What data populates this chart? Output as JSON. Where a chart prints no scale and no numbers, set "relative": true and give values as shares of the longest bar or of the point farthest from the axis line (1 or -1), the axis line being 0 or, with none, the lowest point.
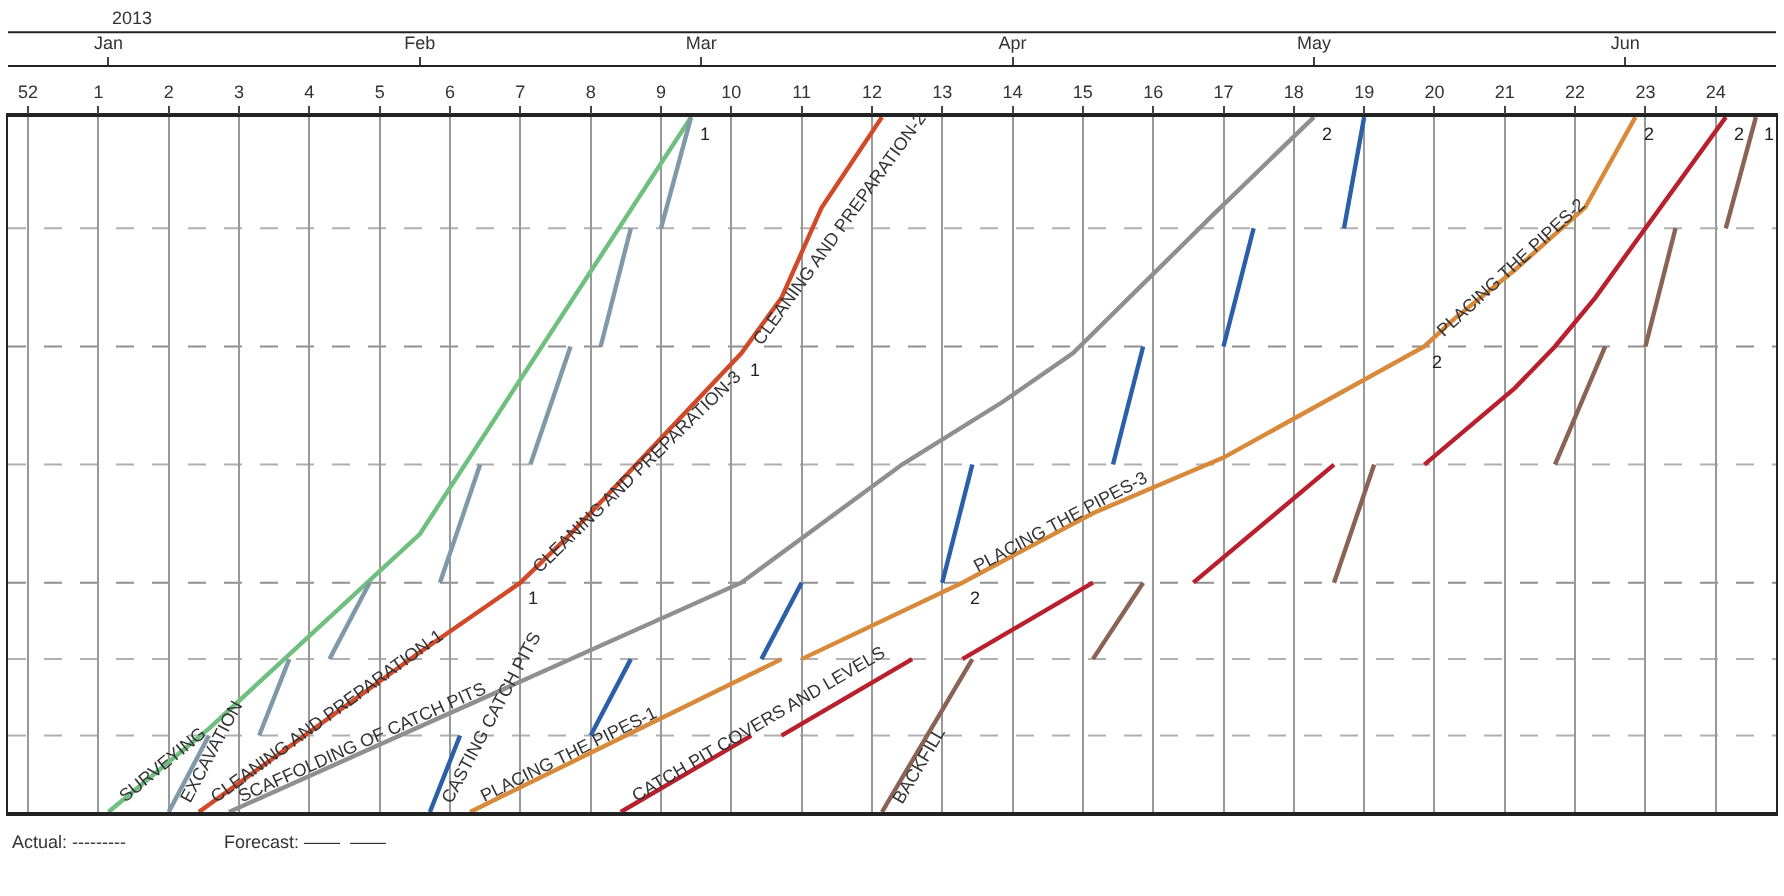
{
  "chart_data": {
    "type": "line",
    "relative": true,
    "legend": false,
    "grid": "x",
    "marker": "none",
    "line_style": "solid",
    "xlim": [
      "2012-12-22",
      "2013-06-16"
    ],
    "xticks": [
      {
        "value": "2012-12-24",
        "label": "52"
      },
      {
        "value": "2012-12-31",
        "label": "1"
      },
      {
        "value": "2013-01-07",
        "label": "2"
      },
      {
        "value": "2013-01-14",
        "label": "3"
      },
      {
        "value": "2013-01-21",
        "label": "4"
      },
      {
        "value": "2013-01-28",
        "label": "5"
      },
      {
        "value": "2013-02-04",
        "label": "6"
      },
      {
        "value": "2013-02-11",
        "label": "7"
      },
      {
        "value": "2013-02-18",
        "label": "8"
      },
      {
        "value": "2013-02-25",
        "label": "9"
      },
      {
        "value": "2013-03-04",
        "label": "10"
      },
      {
        "value": "2013-03-11",
        "label": "11"
      },
      {
        "value": "2013-03-18",
        "label": "12"
      },
      {
        "value": "2013-03-25",
        "label": "13"
      },
      {
        "value": "2013-04-01",
        "label": "14"
      },
      {
        "value": "2013-04-08",
        "label": "15"
      },
      {
        "value": "2013-04-15",
        "label": "16"
      },
      {
        "value": "2013-04-22",
        "label": "17"
      },
      {
        "value": "2013-04-29",
        "label": "18"
      },
      {
        "value": "2013-05-06",
        "label": "19"
      },
      {
        "value": "2013-05-13",
        "label": "20"
      },
      {
        "value": "2013-05-20",
        "label": "21"
      },
      {
        "value": "2013-05-27",
        "label": "22"
      },
      {
        "value": "2013-06-03",
        "label": "23"
      },
      {
        "value": "2013-06-10",
        "label": "24"
      }
    ],
    "x2lim": [
      "2012-12-22",
      "2013-06-16"
    ],
    "x2ticks": [
      {
        "value": "2013-01-01",
        "label": "Jan"
      },
      {
        "value": "2013-02-01",
        "label": "Feb"
      },
      {
        "value": "2013-03-01",
        "label": "Mar"
      },
      {
        "value": "2013-04-01",
        "label": "Apr"
      },
      {
        "value": "2013-05-01",
        "label": "May"
      },
      {
        "value": "2013-06-01",
        "label": "Jun"
      }
    ],
    "x2label": "2013",
    "ref_lines": [
      {
        "axis": "y",
        "value": 0.11,
        "color": "#b0b0b0",
        "line_style": "dashed"
      },
      {
        "axis": "y",
        "value": 0.22,
        "color": "#b0b0b0",
        "line_style": "dashed"
      },
      {
        "axis": "y",
        "value": 0.33,
        "color": "#909090",
        "line_style": "dashed"
      },
      {
        "axis": "y",
        "value": 0.5,
        "color": "#b0b0b0",
        "line_style": "dashed"
      },
      {
        "axis": "y",
        "value": 0.67,
        "color": "#909090",
        "line_style": "dashed"
      },
      {
        "axis": "y",
        "value": 0.84,
        "color": "#b0b0b0",
        "line_style": "dashed"
      }
    ],
    "series": [
      {
        "name": "SURVEYING",
        "color": "#6fbf7f",
        "x": [
          "2013-01-01",
          "2013-01-11",
          "2013-02-01",
          "2013-02-28"
        ],
        "values": [
          0.0,
          0.12,
          0.4,
          1.0
        ]
      },
      {
        "name": "EXCAVATION",
        "color": "#7f99a8",
        "x": [
          "2013-01-07",
          "2013-01-11",
          null,
          "2013-01-16",
          "2013-01-19",
          null,
          "2013-01-23",
          "2013-01-27",
          null,
          "2013-02-03",
          "2013-02-07",
          null,
          "2013-02-12",
          "2013-02-16",
          null,
          "2013-02-19",
          "2013-02-22",
          null,
          "2013-02-25",
          "2013-02-28"
        ],
        "values": [
          0.0,
          0.11,
          null,
          0.11,
          0.22,
          null,
          0.22,
          0.33,
          null,
          0.33,
          0.5,
          null,
          0.5,
          0.67,
          null,
          0.67,
          0.84,
          null,
          0.84,
          1.0
        ]
      },
      {
        "color": "#d04a2a",
        "x": [
          "2013-01-10",
          "2013-02-01",
          "2013-02-11",
          "2013-02-16",
          "2013-03-05",
          "2013-03-09",
          "2013-03-13",
          "2013-03-19"
        ],
        "values": [
          0.0,
          0.23,
          0.33,
          0.4,
          0.66,
          0.74,
          0.87,
          1.0
        ]
      },
      {
        "name": "SCAFFOLDING OF CATCH PITS",
        "color": "#8f8f8f",
        "x": [
          "2013-01-13",
          "2013-03-05",
          "2013-03-21",
          "2013-03-31",
          "2013-04-07",
          "2013-04-14",
          "2013-04-21",
          "2013-05-01"
        ],
        "values": [
          0.0,
          0.33,
          0.5,
          0.59,
          0.66,
          0.76,
          0.86,
          1.0
        ]
      },
      {
        "name": "CASTING CATCH PITS",
        "color": "#2b5fa8",
        "x": [
          "2013-02-02",
          "2013-02-05",
          null,
          "2013-02-18",
          "2013-02-22",
          null,
          "2013-03-07",
          "2013-03-11",
          null,
          "2013-03-25",
          "2013-03-28",
          null,
          "2013-04-11",
          "2013-04-14",
          null,
          "2013-04-22",
          "2013-04-25",
          null,
          "2013-05-04",
          "2013-05-06"
        ],
        "values": [
          0.0,
          0.11,
          null,
          0.11,
          0.22,
          null,
          0.22,
          0.33,
          null,
          0.33,
          0.5,
          null,
          0.5,
          0.67,
          null,
          0.67,
          0.84,
          null,
          0.84,
          1.0
        ]
      },
      {
        "color": "#d8893a",
        "x": [
          "2013-02-06",
          "2013-03-09",
          null,
          "2013-03-11",
          "2013-03-27",
          "2013-04-09",
          "2013-04-22",
          "2013-05-12",
          "2013-05-15",
          "2013-05-21",
          "2013-05-28",
          "2013-06-02"
        ],
        "values": [
          0.0,
          0.22,
          null,
          0.22,
          0.33,
          0.43,
          0.51,
          0.67,
          0.71,
          0.78,
          0.87,
          1.0
        ]
      },
      {
        "name": "CATCH PIT COVERS AND LEVELS",
        "color": "#b8202e",
        "x": [
          "2013-02-21",
          "2013-03-06",
          null,
          "2013-03-09",
          "2013-03-22",
          null,
          "2013-03-27",
          "2013-04-09",
          null,
          "2013-04-19",
          "2013-05-03",
          null,
          "2013-05-12",
          "2013-05-21",
          "2013-05-25",
          "2013-05-29",
          "2013-06-11"
        ],
        "values": [
          0.0,
          0.11,
          null,
          0.11,
          0.22,
          null,
          0.22,
          0.33,
          null,
          0.33,
          0.5,
          null,
          0.5,
          0.61,
          0.67,
          0.74,
          1.0
        ]
      },
      {
        "name": "BACKFILL",
        "color": "#8b6355",
        "x": [
          "2013-03-19",
          "2013-03-28",
          null,
          "2013-04-09",
          "2013-04-14",
          null,
          "2013-05-03",
          "2013-05-07",
          null,
          "2013-05-25",
          "2013-05-30",
          null,
          "2013-06-03",
          "2013-06-06",
          null,
          "2013-06-11",
          "2013-06-14"
        ],
        "values": [
          0.0,
          0.22,
          null,
          0.22,
          0.33,
          null,
          0.33,
          0.5,
          null,
          0.5,
          0.67,
          null,
          0.67,
          0.84,
          null,
          0.84,
          1.0
        ]
      }
    ],
    "annotations": [
      "Actual: ---------",
      "Forecast: ——  ——",
      {
        "text": "CLEANING AND PREPARATION-1",
        "x": "2013-01-10",
        "y": 0.0
      },
      {
        "text": "CLEANING AND PREPARATION-3",
        "x": "2013-02-11",
        "y": 0.33
      },
      {
        "text": "CLEANING AND PREPARATION-2",
        "x": "2013-03-05",
        "y": 0.66
      },
      {
        "text": "PLACING THE PIPES-1",
        "x": "2013-02-06",
        "y": 0.0
      },
      {
        "text": "PLACING THE PIPES-3",
        "x": "2013-03-27",
        "y": 0.33
      },
      {
        "text": "PLACING THE PIPES-2",
        "x": "2013-05-12",
        "y": 0.67
      },
      {
        "text": "1",
        "x": "2013-02-28",
        "y": 1.0
      },
      {
        "text": "1",
        "x": "2013-03-05",
        "y": 0.66
      },
      {
        "text": "1",
        "x": "2013-02-11",
        "y": 0.33
      },
      {
        "text": "2",
        "x": "2013-03-27",
        "y": 0.33
      },
      {
        "text": "2",
        "x": "2013-05-01",
        "y": 1.0
      },
      {
        "text": "2",
        "x": "2013-05-12",
        "y": 0.67
      },
      {
        "text": "2",
        "x": "2013-06-02",
        "y": 1.0
      },
      {
        "text": "2",
        "x": "2013-06-11",
        "y": 1.0
      },
      {
        "text": "1",
        "x": "2013-06-14",
        "y": 1.0
      }
    ]
  }
}
